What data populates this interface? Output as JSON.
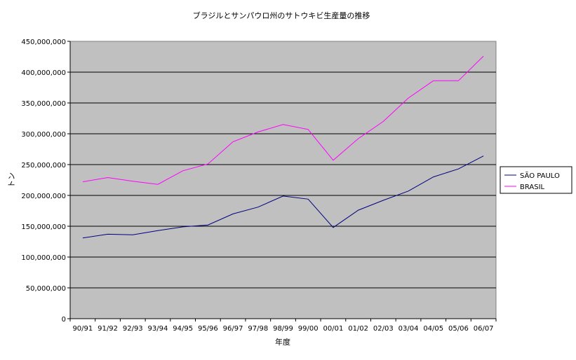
{
  "chart_data": {
    "type": "line",
    "title": "ブラジルとサンパウロ州のサトウキビ生産量の推移",
    "xlabel": "年度",
    "ylabel": "トン",
    "categories": [
      "90/91",
      "91/92",
      "92/93",
      "93/94",
      "94/95",
      "95/96",
      "96/97",
      "97/98",
      "98/99",
      "99/00",
      "00/01",
      "01/02",
      "02/03",
      "03/04",
      "04/05",
      "05/06",
      "06/07"
    ],
    "ylim": [
      0,
      450000000
    ],
    "yticks": [
      0,
      50000000,
      100000000,
      150000000,
      200000000,
      250000000,
      300000000,
      350000000,
      400000000,
      450000000
    ],
    "ytick_labels": [
      "0",
      "50,000,000",
      "100,000,000",
      "150,000,000",
      "200,000,000",
      "250,000,000",
      "300,000,000",
      "350,000,000",
      "400,000,000",
      "450,000,000"
    ],
    "grid": true,
    "plot_background": "#c0c0c0",
    "legend_position": "right",
    "series": [
      {
        "name": "SÃO PAULO",
        "color": "#000080",
        "values": [
          131000000,
          137000000,
          136000000,
          143000000,
          149000000,
          152000000,
          170000000,
          181000000,
          199000000,
          194000000,
          148000000,
          176000000,
          192000000,
          207000000,
          230000000,
          243000000,
          264000000
        ]
      },
      {
        "name": "BRASIL",
        "color": "#ff00ff",
        "values": [
          222000000,
          229000000,
          223000000,
          218000000,
          240000000,
          251000000,
          287000000,
          303000000,
          315000000,
          307000000,
          257000000,
          292000000,
          320000000,
          358000000,
          386000000,
          386000000,
          426000000
        ]
      }
    ]
  }
}
